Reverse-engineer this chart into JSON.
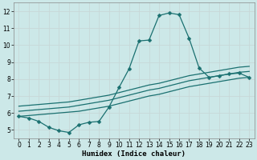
{
  "xlabel": "Humidex (Indice chaleur)",
  "background_color": "#cce8e8",
  "grid_color": "#c8d8d8",
  "line_color": "#1a7070",
  "x_peak": [
    0,
    1,
    2,
    3,
    4,
    5,
    6,
    7,
    8,
    9,
    10,
    11,
    12,
    13,
    14,
    15,
    16,
    17,
    18,
    19,
    20,
    21,
    22,
    23
  ],
  "y_peak": [
    5.8,
    5.7,
    5.5,
    5.15,
    4.95,
    4.85,
    5.3,
    5.45,
    5.5,
    6.35,
    7.5,
    8.6,
    10.25,
    10.3,
    11.75,
    11.9,
    11.8,
    10.4,
    8.65,
    8.1,
    8.2,
    8.3,
    8.35,
    8.1
  ],
  "x_env": [
    0,
    1,
    2,
    3,
    4,
    5,
    6,
    7,
    8,
    9,
    10,
    11,
    12,
    13,
    14,
    15,
    16,
    17,
    18,
    19,
    20,
    21,
    22,
    23
  ],
  "y_env1": [
    5.8,
    5.85,
    5.9,
    5.95,
    6.0,
    6.05,
    6.1,
    6.2,
    6.3,
    6.4,
    6.55,
    6.7,
    6.85,
    7.0,
    7.1,
    7.25,
    7.4,
    7.55,
    7.65,
    7.75,
    7.85,
    7.95,
    8.05,
    8.1
  ],
  "y_env2": [
    6.1,
    6.15,
    6.2,
    6.25,
    6.3,
    6.35,
    6.45,
    6.55,
    6.65,
    6.75,
    6.9,
    7.05,
    7.2,
    7.35,
    7.45,
    7.6,
    7.75,
    7.9,
    8.0,
    8.1,
    8.2,
    8.3,
    8.4,
    8.45
  ],
  "y_env3": [
    6.4,
    6.45,
    6.5,
    6.55,
    6.6,
    6.65,
    6.75,
    6.85,
    6.95,
    7.05,
    7.2,
    7.35,
    7.5,
    7.65,
    7.75,
    7.9,
    8.05,
    8.2,
    8.3,
    8.4,
    8.5,
    8.6,
    8.7,
    8.75
  ],
  "xlim": [
    -0.5,
    23.5
  ],
  "ylim": [
    4.5,
    12.5
  ],
  "yticks": [
    5,
    6,
    7,
    8,
    9,
    10,
    11,
    12
  ],
  "xticks": [
    0,
    1,
    2,
    3,
    4,
    5,
    6,
    7,
    8,
    9,
    10,
    11,
    12,
    13,
    14,
    15,
    16,
    17,
    18,
    19,
    20,
    21,
    22,
    23
  ]
}
